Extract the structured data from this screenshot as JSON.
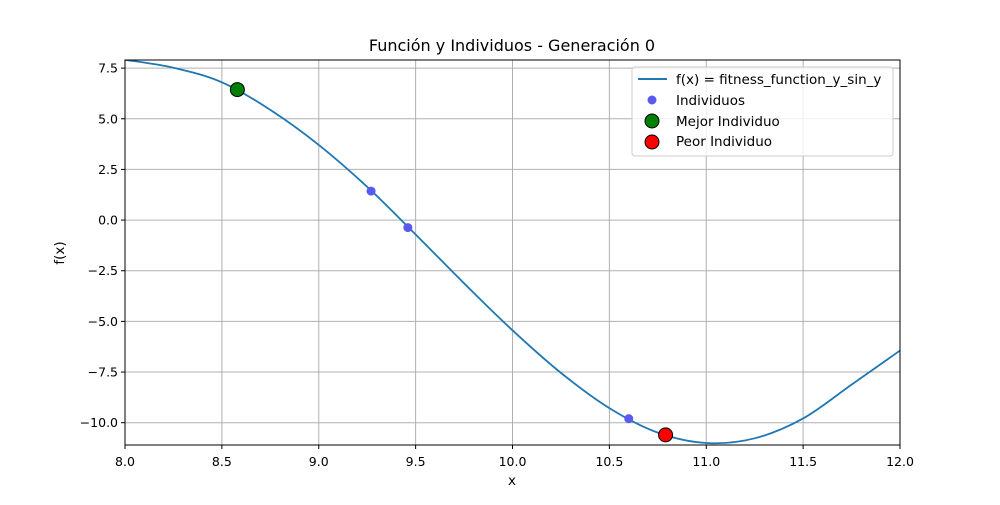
{
  "chart_data": {
    "type": "line",
    "title": "Función y Individuos - Generación 0",
    "xlabel": "x",
    "ylabel": "f(x)",
    "xlim": [
      8.0,
      12.0
    ],
    "ylim": [
      -11.1,
      7.9
    ],
    "grid": true,
    "legend_position": "top-right",
    "x_ticks": [
      {
        "value": 8.0,
        "label": "8.0"
      },
      {
        "value": 8.5,
        "label": "8.5"
      },
      {
        "value": 9.0,
        "label": "9.0"
      },
      {
        "value": 9.5,
        "label": "9.5"
      },
      {
        "value": 10.0,
        "label": "10.0"
      },
      {
        "value": 10.5,
        "label": "10.5"
      },
      {
        "value": 11.0,
        "label": "11.0"
      },
      {
        "value": 11.5,
        "label": "11.5"
      },
      {
        "value": 12.0,
        "label": "12.0"
      }
    ],
    "y_ticks": [
      {
        "value": 7.5,
        "label": "7.5"
      },
      {
        "value": 5.0,
        "label": "5.0"
      },
      {
        "value": 2.5,
        "label": "2.5"
      },
      {
        "value": 0.0,
        "label": "0.0"
      },
      {
        "value": -2.5,
        "label": "−2.5"
      },
      {
        "value": -5.0,
        "label": "−5.0"
      },
      {
        "value": -7.5,
        "label": "−7.5"
      },
      {
        "value": -10.0,
        "label": "−10.0"
      }
    ],
    "series": [
      {
        "name": "f(x) = fitness_function_y_sin_y",
        "kind": "line",
        "color": "#1f77b4",
        "x": [
          8.0,
          8.25,
          8.5,
          8.75,
          9.0,
          9.25,
          9.5,
          9.75,
          10.0,
          10.25,
          10.5,
          10.75,
          11.0,
          11.25,
          11.5,
          11.75,
          12.0
        ],
        "y": [
          7.91,
          7.52,
          6.8,
          5.44,
          3.71,
          1.64,
          -0.71,
          -3.12,
          -5.44,
          -7.54,
          -9.28,
          -10.49,
          -11.0,
          -10.77,
          -9.79,
          -8.12,
          -6.44
        ]
      },
      {
        "name": "Individuos",
        "kind": "scatter",
        "color": "#5a5af0",
        "x": [
          9.27,
          9.46,
          10.6
        ],
        "y": [
          1.43,
          -0.37,
          -9.8
        ]
      },
      {
        "name": "Mejor Individuo",
        "kind": "scatter",
        "color": "#008000",
        "x": [
          8.58
        ],
        "y": [
          6.44
        ]
      },
      {
        "name": "Peor Individuo",
        "kind": "scatter",
        "color": "#ff0000",
        "x": [
          10.79
        ],
        "y": [
          -10.6
        ]
      }
    ]
  }
}
